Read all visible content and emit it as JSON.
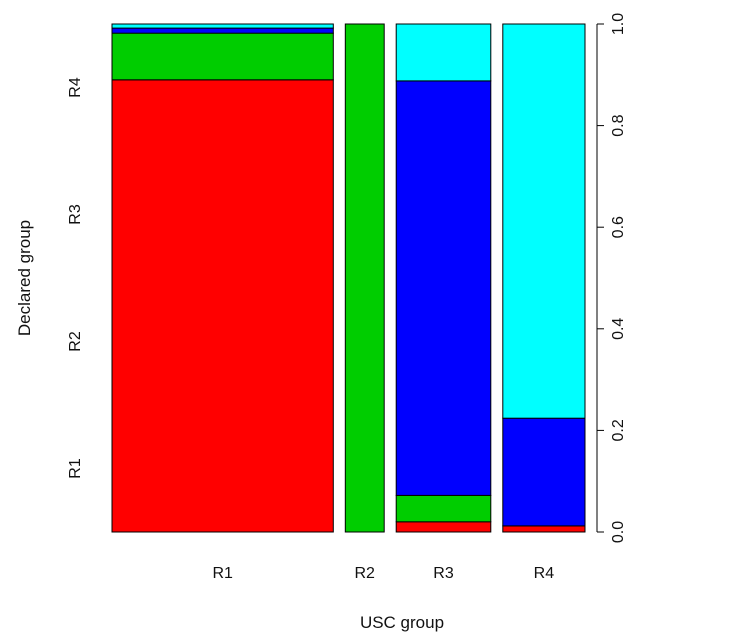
{
  "chart_data": {
    "type": "mosaic",
    "xlabel": "USC group",
    "ylabel": "Declared group",
    "categories": [
      "R1",
      "R2",
      "R3",
      "R4"
    ],
    "column_widths": [
      0.592,
      0.104,
      0.253,
      0.22
    ],
    "segment_groups": [
      "R1",
      "R2",
      "R3",
      "R4"
    ],
    "segment_colors": [
      "#ff0000",
      "#00cd00",
      "#0000ff",
      "#00ffff"
    ],
    "proportions": [
      [
        0.89,
        0.092,
        0.01,
        0.008
      ],
      [
        0.0,
        1.0,
        0.0,
        0.0
      ],
      [
        0.02,
        0.052,
        0.816,
        0.112
      ],
      [
        0.012,
        0.0,
        0.212,
        0.776
      ]
    ],
    "left_axis_ticks": [
      "R1",
      "R2",
      "R3",
      "R4"
    ],
    "right_axis_ticks": [
      "0.0",
      "0.2",
      "0.4",
      "0.6",
      "0.8",
      "1.0"
    ],
    "ylim": [
      0,
      1
    ]
  }
}
